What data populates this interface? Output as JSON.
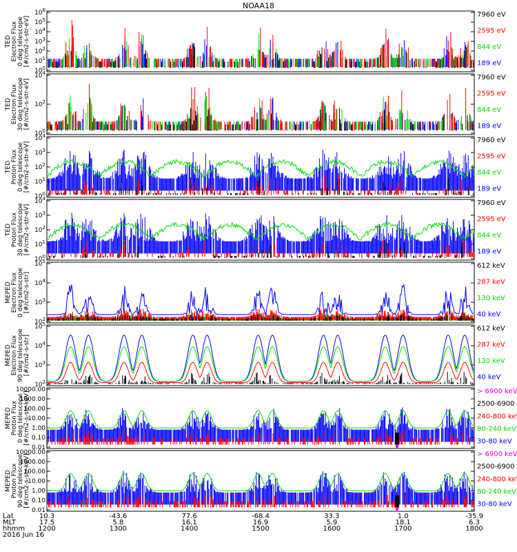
{
  "title": "NOAA18",
  "colors": {
    "blue": "#0000ff",
    "green": "#00dd00",
    "red": "#ff0000",
    "black": "#000000",
    "magenta": "#dd00dd"
  },
  "panels": [
    {
      "id": "ted-e-0",
      "ylabel": [
        "TED",
        "Electron Flux",
        "0 deg telescope",
        "[#/cm2-s-str-eV]"
      ],
      "yticks": [
        "10^0",
        "10^1",
        "10^2",
        "10^3",
        "10^4",
        "10^5",
        "10^6"
      ],
      "legend": [
        {
          "label": "7960 eV",
          "color": "black"
        },
        {
          "label": "2595 eV",
          "color": "red"
        },
        {
          "label": "844 eV",
          "color": "green"
        },
        {
          "label": "189 eV",
          "color": "blue"
        }
      ],
      "style": "ted_sparse"
    },
    {
      "id": "ted-e-30",
      "ylabel": [
        "TED",
        "Electron Flux",
        "30 deg telescope",
        "[#/cm2-s-str-eV]"
      ],
      "yticks": [
        "10^0",
        "10^2",
        "10^4"
      ],
      "legend": [
        {
          "label": "7960 eV",
          "color": "black"
        },
        {
          "label": "2595 eV",
          "color": "red"
        },
        {
          "label": "844 eV",
          "color": "green"
        },
        {
          "label": "189 eV",
          "color": "blue"
        }
      ],
      "style": "ted_sparse2"
    },
    {
      "id": "ted-p-0",
      "ylabel": [
        "TED",
        "Proton Flux",
        "0 deg telescope",
        "[#/cm2-s-str-eV]"
      ],
      "yticks": [
        "10^0",
        "10^1",
        "10^2",
        "10^3",
        "10^4"
      ],
      "legend": [
        {
          "label": "7960 eV",
          "color": "black"
        },
        {
          "label": "2595 eV",
          "color": "red"
        },
        {
          "label": "844 eV",
          "color": "green"
        },
        {
          "label": "189 eV",
          "color": "blue"
        }
      ],
      "style": "ted_proton"
    },
    {
      "id": "ted-p-30",
      "ylabel": [
        "TED",
        "Proton Flux",
        "30 deg telescope",
        "[#/cm2-s-str-eV]"
      ],
      "yticks": [
        "10^0",
        "10^1",
        "10^2",
        "10^3",
        "10^4"
      ],
      "legend": [
        {
          "label": "7960 eV",
          "color": "black"
        },
        {
          "label": "2595 eV",
          "color": "red"
        },
        {
          "label": "844 eV",
          "color": "green"
        },
        {
          "label": "189 eV",
          "color": "blue"
        }
      ],
      "style": "ted_proton2"
    },
    {
      "id": "meped-e-0",
      "ylabel": [
        "MEPED",
        "Electron Flux",
        "0 deg telescope",
        "[#/cm2-s-str]"
      ],
      "yticks": [
        "10^2",
        "10^3",
        "10^4",
        "10^5"
      ],
      "legend": [
        {
          "label": "612 keV",
          "color": "black"
        },
        {
          "label": "287 keV",
          "color": "red"
        },
        {
          "label": "130 keV",
          "color": "green"
        },
        {
          "label": "40 keV",
          "color": "blue"
        }
      ],
      "style": "meped_e0"
    },
    {
      "id": "meped-e-90",
      "ylabel": [
        "MEPED",
        "Electron Flux",
        "90 deg telescope",
        "[#/cm2-s-str]"
      ],
      "yticks": [
        "10^2",
        "10^3",
        "10^4",
        "10^5"
      ],
      "legend": [
        {
          "label": "612 keV",
          "color": "black"
        },
        {
          "label": "287 keV",
          "color": "red"
        },
        {
          "label": "130 keV",
          "color": "green"
        },
        {
          "label": "40 keV",
          "color": "blue"
        }
      ],
      "style": "meped_e90"
    },
    {
      "id": "meped-p-0",
      "ylabel": [
        "MEPED",
        "Proton Flux",
        "0 deg telescope",
        "[#/cm2-s-str-keV]"
      ],
      "yticks": [
        "0.01",
        "0.10",
        "1.00",
        "10.00",
        "100.00",
        "1000.00",
        "10000.00"
      ],
      "legend": [
        {
          "label": "> 6900 keV",
          "color": "magenta"
        },
        {
          "label": "2500-6900",
          "color": "black"
        },
        {
          "label": "240-800 keV",
          "color": "red"
        },
        {
          "label": "80-240 keV",
          "color": "green"
        },
        {
          "label": "30-80 keV",
          "color": "blue"
        }
      ],
      "style": "meped_p0"
    },
    {
      "id": "meped-p-90",
      "ylabel": [
        "MEPED",
        "Proton Flux",
        "90 deg telescope",
        "[#/cm2-s-str-keV]"
      ],
      "yticks": [
        "0.01",
        "0.10",
        "1.00",
        "10.00",
        "100.00",
        "1000.00",
        "10000.00"
      ],
      "legend": [
        {
          "label": "> 6900 keV",
          "color": "magenta"
        },
        {
          "label": "2500-6900",
          "color": "black"
        },
        {
          "label": "240-800 keV",
          "color": "red"
        },
        {
          "label": "80-240 keV",
          "color": "green"
        },
        {
          "label": "30-80 keV",
          "color": "blue"
        }
      ],
      "style": "meped_p90"
    }
  ],
  "xaxis": {
    "row_labels": [
      "Lat",
      "MLT",
      "hhmm",
      "2016 Jun 16"
    ],
    "ticks": [
      {
        "lat": "10.3",
        "mlt": "17.5",
        "hhmm": "1200"
      },
      {
        "lat": "-43.6",
        "mlt": "5.8",
        "hhmm": "1300"
      },
      {
        "lat": "77.6",
        "mlt": "16.1",
        "hhmm": "1400"
      },
      {
        "lat": "-68.4",
        "mlt": "16.9",
        "hhmm": "1500"
      },
      {
        "lat": "33.3",
        "mlt": "5.9",
        "hhmm": "1600"
      },
      {
        "lat": "1.0",
        "mlt": "18.1",
        "hhmm": "1700"
      },
      {
        "lat": "-35.9",
        "mlt": "6.3",
        "hhmm": "1800"
      }
    ]
  },
  "chart_data": {
    "type": "line",
    "title": "NOAA18",
    "x": [
      "1200",
      "1300",
      "1400",
      "1500",
      "1600",
      "1700",
      "1800"
    ],
    "xlabel": "hhmm",
    "date": "2016 Jun 16",
    "passes_center_hhmm": [
      "1220",
      "1235",
      "1305",
      "1320",
      "1403",
      "1415",
      "1458",
      "1510",
      "1553",
      "1605",
      "1645",
      "1700",
      "1738",
      "1752"
    ],
    "series_note": "log-scale flux time series per panel; values estimated from gridlines"
  }
}
